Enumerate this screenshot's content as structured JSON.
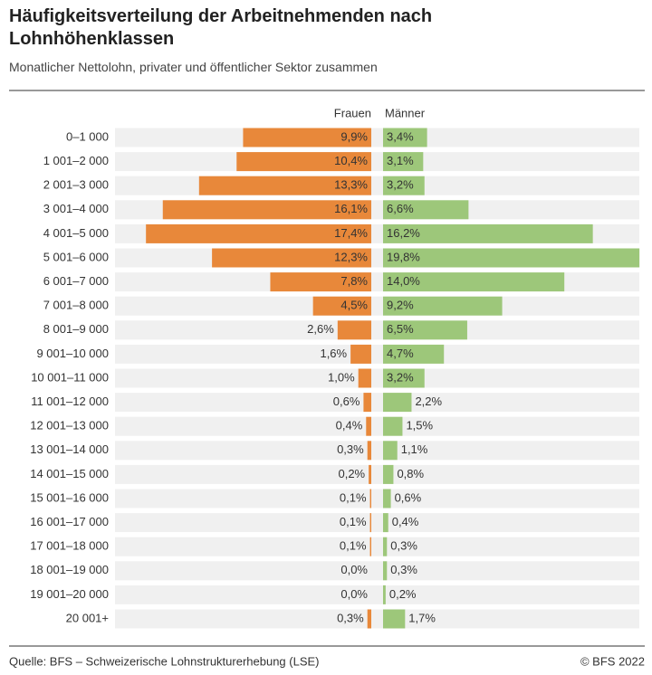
{
  "chart_data": {
    "type": "pyramid",
    "title": "Häufigkeitsverteilung der Arbeitnehmenden nach Lohnhöhenklassen",
    "subtitle": "Monatlicher Nettolohn, privater und öffentlicher Sektor zusammen",
    "source": "Quelle: BFS – Schweizerische Lohnstrukturerhebung (LSE)",
    "copyright": "© BFS 2022",
    "categories": [
      "0–1 000",
      "1 001–2 000",
      "2 001–3 000",
      "3 001–4 000",
      "4 001–5 000",
      "5 001–6 000",
      "6 001–7 000",
      "7 001–8 000",
      "8 001–9 000",
      "9 001–10 000",
      "10 001–11 000",
      "11 001–12 000",
      "12 001–13 000",
      "13 001–14 000",
      "14 001–15 000",
      "15 001–16 000",
      "16 001–17 000",
      "17 001–18 000",
      "18 001–19 000",
      "19 001–20 000",
      "20 001+"
    ],
    "series": [
      {
        "name": "Frauen",
        "color": "#e8883a",
        "values": [
          9.9,
          10.4,
          13.3,
          16.1,
          17.4,
          12.3,
          7.8,
          4.5,
          2.6,
          1.6,
          1.0,
          0.6,
          0.4,
          0.3,
          0.2,
          0.1,
          0.1,
          0.1,
          0.0,
          0.0,
          0.3
        ],
        "value_labels": [
          "9,9%",
          "10,4%",
          "13,3%",
          "16,1%",
          "17,4%",
          "12,3%",
          "7,8%",
          "4,5%",
          "2,6%",
          "1,6%",
          "1,0%",
          "0,6%",
          "0,4%",
          "0,3%",
          "0,2%",
          "0,1%",
          "0,1%",
          "0,1%",
          "0,0%",
          "0,0%",
          "0,3%"
        ]
      },
      {
        "name": "Männer",
        "color": "#9dc77a",
        "values": [
          3.4,
          3.1,
          3.2,
          6.6,
          16.2,
          19.8,
          14.0,
          9.2,
          6.5,
          4.7,
          3.2,
          2.2,
          1.5,
          1.1,
          0.8,
          0.6,
          0.4,
          0.3,
          0.3,
          0.2,
          1.7
        ],
        "value_labels": [
          "3,4%",
          "3,1%",
          "3,2%",
          "6,6%",
          "16,2%",
          "19,8%",
          "14,0%",
          "9,2%",
          "6,5%",
          "4,7%",
          "3,2%",
          "2,2%",
          "1,5%",
          "1,1%",
          "0,8%",
          "0,6%",
          "0,4%",
          "0,3%",
          "0,3%",
          "0,2%",
          "1,7%"
        ]
      }
    ]
  }
}
